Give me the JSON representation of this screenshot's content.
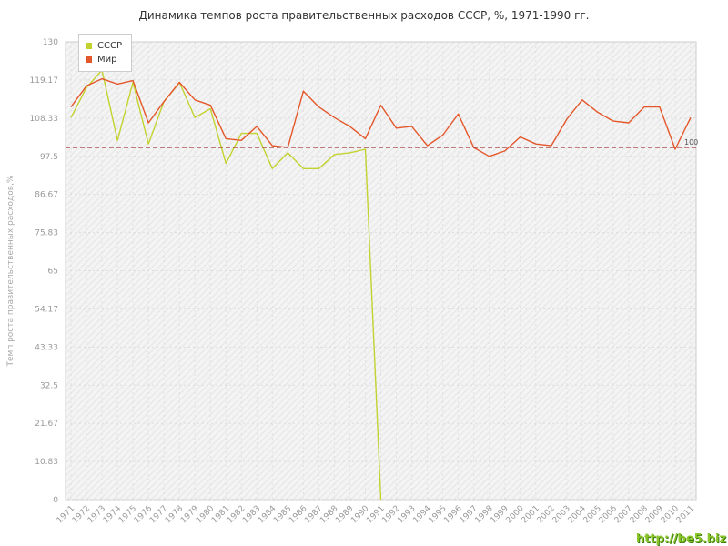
{
  "watermark": "http://be5.biz",
  "legend": {
    "items": [
      {
        "label": "СССР",
        "color": "#c3d22f"
      },
      {
        "label": "Мир",
        "color": "#e4572a"
      }
    ]
  },
  "chart_data": {
    "type": "line",
    "title": "Динамика темпов роста правительственных расходов СССР, %, 1971-1990 гг.",
    "xlabel": "",
    "ylabel": "Темп роста правительственных расходов,%",
    "ylim": [
      0,
      130
    ],
    "grid": true,
    "legend_position": "nw",
    "y_ticks": [
      "130",
      "119.17",
      "108.33",
      "97.5",
      "86.67",
      "75.83",
      "65",
      "54.17",
      "43.33",
      "32.5",
      "21.67",
      "10.83",
      "0"
    ],
    "x": [
      1971,
      1972,
      1973,
      1974,
      1975,
      1976,
      1977,
      1978,
      1979,
      1980,
      1981,
      1982,
      1983,
      1984,
      1985,
      1986,
      1987,
      1988,
      1989,
      1990,
      1991,
      1992,
      1993,
      1994,
      1995,
      1996,
      1997,
      1998,
      1999,
      2000,
      2001,
      2002,
      2003,
      2004,
      2005,
      2006,
      2007,
      2008,
      2009,
      2010,
      2011
    ],
    "series": [
      {
        "name": "СССР",
        "color": "#c3d22f",
        "values": [
          108.5,
          117,
          122,
          102,
          118.5,
          101,
          113,
          118.5,
          108.5,
          111,
          95.5,
          104,
          104,
          94,
          98.5,
          94,
          94,
          98,
          98.5,
          99.5,
          0
        ]
      },
      {
        "name": "Мир",
        "color": "#e4572a",
        "values": [
          111.5,
          117.5,
          119.5,
          118,
          119,
          107,
          113,
          118.5,
          113.5,
          112,
          102.5,
          102,
          106,
          100.5,
          100,
          116,
          111.5,
          108.5,
          106,
          102.5,
          112,
          105.5,
          106,
          100.5,
          103.5,
          109.5,
          100,
          97.5,
          99,
          103,
          101,
          100.5,
          108,
          113.5,
          110,
          107.5,
          107,
          111.5,
          111.5,
          99.5,
          108.5
        ]
      }
    ],
    "reference_line": {
      "value": 100,
      "label": "100",
      "color": "#a33535"
    }
  }
}
